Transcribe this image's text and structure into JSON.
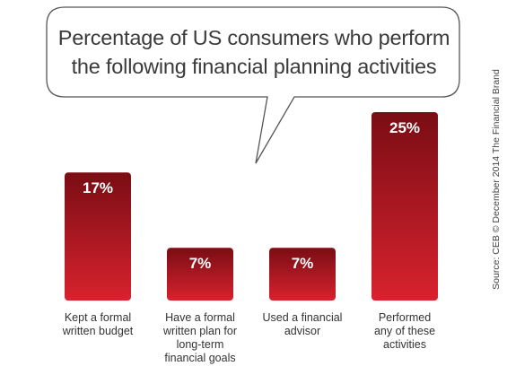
{
  "chart_data": {
    "type": "bar",
    "title_lines": [
      "Percentage of US consumers who perform",
      "the following financial planning activities"
    ],
    "categories": [
      [
        "Kept a formal",
        "written budget"
      ],
      [
        "Have a formal",
        "written plan for",
        "long-term",
        "financial goals"
      ],
      [
        "Used a financial",
        "advisor"
      ],
      [
        "Performed",
        "any of these",
        "activities"
      ]
    ],
    "values": [
      17,
      7,
      7,
      25
    ],
    "value_labels": [
      "17%",
      "7%",
      "7%",
      "25%"
    ],
    "ylim": [
      0,
      25
    ],
    "grid": false,
    "legend": "none",
    "source": "Source: CEB © December 2014 The Financial Brand"
  },
  "colors": {
    "bar_top": "#7a0d14",
    "bar_bottom": "#d8222e",
    "bubble_stroke": "#555555",
    "bubble_fill": "#ffffff"
  }
}
